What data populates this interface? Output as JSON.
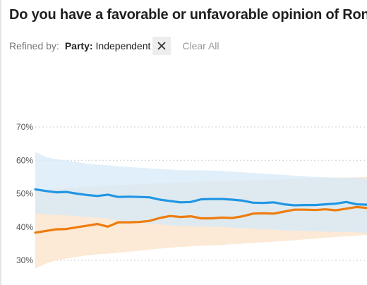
{
  "title": "Do you have a favorable or unfavorable opinion of Ron",
  "filters": {
    "refined_label": "Refined by:",
    "chip_key": "Party:",
    "chip_value": "Independent",
    "clear_label": "Clear All"
  },
  "chart_data": {
    "type": "line",
    "title": "",
    "xlabel": "",
    "ylabel": "",
    "ylim": [
      25,
      75
    ],
    "yticks": [
      30,
      40,
      50,
      60,
      70
    ],
    "ytick_labels": [
      "30%",
      "40%",
      "50%",
      "60%",
      "70%"
    ],
    "grid": true,
    "colors": {
      "blue": "#2196e3",
      "orange": "#ee7c0e",
      "blue_band": "#d6e9f8",
      "orange_band": "#fce7d2"
    },
    "series": [
      {
        "color": "#2196e3",
        "values": [
          51.3,
          50.8,
          50.4,
          50.5,
          50.0,
          49.6,
          49.3,
          49.7,
          49.0,
          49.1,
          49.0,
          48.9,
          48.2,
          47.8,
          47.4,
          47.5,
          48.3,
          48.4,
          48.4,
          48.2,
          47.9,
          47.3,
          47.2,
          47.4,
          46.8,
          46.5,
          46.6,
          46.6,
          46.8,
          47.0,
          47.5,
          46.8,
          46.7
        ],
        "band_upper": [
          62.5,
          61.0,
          60.3,
          60.0,
          59.5,
          59.0,
          58.7,
          58.5,
          58.2,
          58.0,
          57.8,
          57.6,
          57.4,
          57.2,
          57.0,
          57.0,
          57.0,
          56.9,
          56.8,
          56.6,
          56.4,
          56.2,
          56.0,
          55.8,
          55.6,
          55.4,
          55.2,
          55.0,
          54.9,
          54.8,
          54.8,
          54.7,
          54.5
        ],
        "band_lower": [
          44.0,
          43.8,
          43.6,
          43.5,
          43.2,
          43.0,
          42.8,
          42.5,
          42.0,
          41.5,
          41.2,
          41.0,
          40.8,
          40.5,
          40.3,
          40.2,
          40.2,
          40.0,
          40.0,
          39.8,
          39.6,
          39.5,
          39.3,
          39.2,
          39.0,
          38.9,
          38.8,
          38.7,
          38.6,
          38.5,
          38.5,
          38.4,
          38.2
        ]
      },
      {
        "color": "#ee7c0e",
        "values": [
          38.3,
          38.8,
          39.3,
          39.4,
          39.9,
          40.4,
          40.9,
          40.1,
          41.4,
          41.4,
          41.5,
          41.8,
          42.7,
          43.3,
          43.0,
          43.2,
          42.6,
          42.6,
          42.8,
          42.7,
          43.2,
          44.0,
          44.1,
          44.0,
          44.6,
          45.2,
          45.2,
          45.1,
          45.3,
          45.0,
          45.5,
          46.0,
          45.7
        ],
        "band_upper": [
          51.0,
          51.2,
          51.5,
          51.6,
          51.8,
          52.0,
          52.2,
          52.4,
          52.6,
          52.7,
          52.8,
          53.0,
          53.1,
          53.2,
          53.4,
          53.5,
          53.6,
          53.7,
          53.8,
          53.9,
          53.9,
          54.0,
          54.1,
          54.2,
          54.3,
          54.4,
          54.5,
          54.6,
          54.7,
          54.8,
          54.8,
          54.9,
          55.0
        ],
        "band_lower": [
          27.5,
          29.0,
          30.0,
          30.5,
          31.0,
          31.5,
          31.8,
          32.0,
          32.3,
          32.6,
          32.9,
          33.2,
          33.5,
          33.8,
          34.0,
          34.2,
          34.4,
          34.5,
          34.6,
          34.8,
          35.0,
          35.2,
          35.4,
          35.6,
          35.8,
          36.0,
          36.3,
          36.5,
          36.8,
          37.0,
          37.2,
          37.4,
          37.6
        ]
      }
    ]
  }
}
